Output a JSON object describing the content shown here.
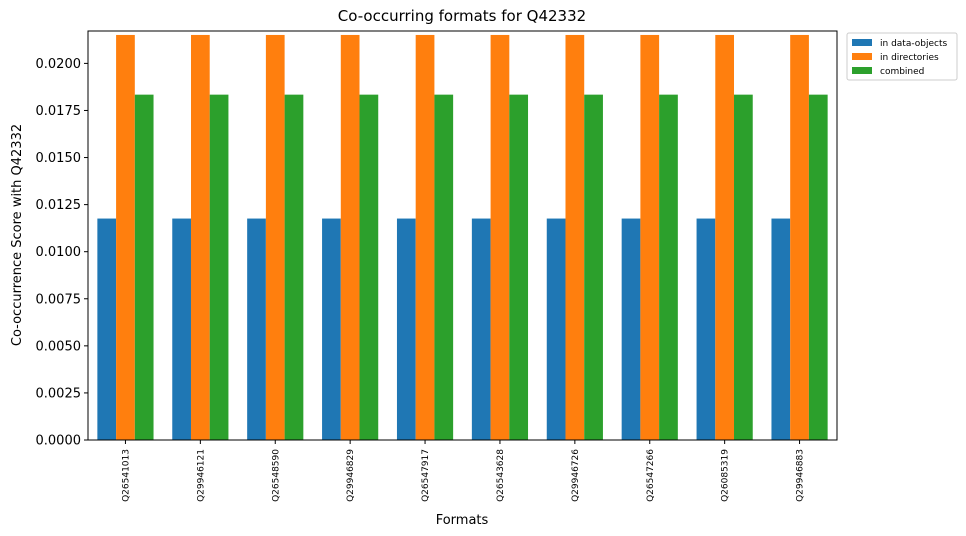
{
  "chart_data": {
    "type": "bar",
    "title": "Co-occurring formats for Q42332",
    "xlabel": "Formats",
    "ylabel": "Co-occurrence Score with Q42332",
    "categories": [
      "Q26541013",
      "Q29946121",
      "Q26548590",
      "Q29946829",
      "Q26547917",
      "Q26543628",
      "Q29946726",
      "Q26547266",
      "Q26085319",
      "Q29946883"
    ],
    "series": [
      {
        "name": "in data-objects",
        "color": "#1f77b4",
        "values": [
          0.01176,
          0.01176,
          0.01176,
          0.01176,
          0.01176,
          0.01176,
          0.01176,
          0.01176,
          0.01176,
          0.01176
        ]
      },
      {
        "name": "in directories",
        "color": "#ff7f0e",
        "values": [
          0.02151,
          0.02151,
          0.02151,
          0.02151,
          0.02151,
          0.02151,
          0.02151,
          0.02151,
          0.02151,
          0.02151
        ]
      },
      {
        "name": "combined",
        "color": "#2ca02c",
        "values": [
          0.01834,
          0.01834,
          0.01834,
          0.01834,
          0.01834,
          0.01834,
          0.01834,
          0.01834,
          0.01834,
          0.01834
        ]
      }
    ],
    "yticks": [
      "0.0000",
      "0.0025",
      "0.0050",
      "0.0075",
      "0.0100",
      "0.0125",
      "0.0150",
      "0.0175",
      "0.0200"
    ],
    "ylim": [
      0,
      0.02172
    ],
    "grid": false,
    "legend_position": "outside-top-right"
  }
}
